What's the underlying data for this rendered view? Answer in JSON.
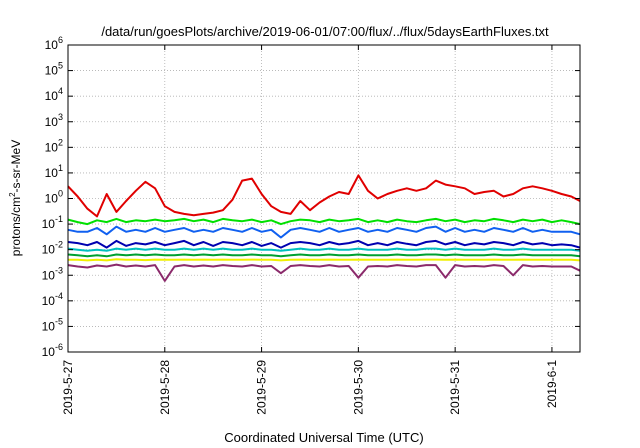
{
  "chart_data": {
    "type": "line",
    "title": "/data/run/goesPlots/archive/2019-06-01/07:00/flux/../flux/5daysEarthFluxes.txt",
    "xlabel": "Coordinated Universal Time (UTC)",
    "ylabel": {
      "base": "protons/cm",
      "sup": "2",
      "rest": "-s-sr-MeV"
    },
    "yscale": "log",
    "ylim_exp": [
      -6,
      6
    ],
    "ytick_base": "10",
    "yticks_exp": [
      "-6",
      "-5",
      "-4",
      "-3",
      "-2",
      "-1",
      "0",
      "1",
      "2",
      "3",
      "4",
      "5",
      "6"
    ],
    "xlim": [
      "2019-05-27",
      "2019-06-01 07:00"
    ],
    "xticks": [
      "2019-5-27",
      "2019-5-28",
      "2019-5-29",
      "2019-5-30",
      "2019-5-31",
      "2019-6-1"
    ],
    "grid": true,
    "x_days": [
      0,
      0.1,
      0.2,
      0.3,
      0.4,
      0.5,
      0.6,
      0.7,
      0.8,
      0.9,
      1.0,
      1.1,
      1.2,
      1.3,
      1.4,
      1.5,
      1.6,
      1.7,
      1.8,
      1.9,
      2.0,
      2.1,
      2.2,
      2.3,
      2.4,
      2.5,
      2.6,
      2.7,
      2.8,
      2.9,
      3.0,
      3.1,
      3.2,
      3.3,
      3.4,
      3.5,
      3.6,
      3.7,
      3.8,
      3.9,
      4.0,
      4.1,
      4.2,
      4.3,
      4.4,
      4.5,
      4.6,
      4.7,
      4.8,
      4.9,
      5.0,
      5.1,
      5.2,
      5.29
    ],
    "series": [
      {
        "color": "#e00000",
        "values": [
          3.0,
          1.2,
          0.4,
          0.2,
          1.5,
          0.3,
          0.8,
          2.0,
          4.5,
          2.5,
          0.5,
          0.3,
          0.25,
          0.22,
          0.25,
          0.28,
          0.35,
          0.9,
          5.0,
          6.0,
          1.5,
          0.5,
          0.3,
          0.25,
          0.8,
          0.35,
          0.7,
          1.2,
          1.8,
          1.5,
          8.0,
          2.0,
          1.0,
          1.5,
          2.0,
          2.5,
          2.0,
          2.5,
          5.0,
          3.5,
          3.0,
          2.5,
          1.5,
          1.8,
          2.0,
          1.2,
          1.5,
          2.5,
          3.0,
          2.5,
          2.0,
          1.5,
          1.2,
          0.8
        ]
      },
      {
        "color": "#00e000",
        "values": [
          0.15,
          0.12,
          0.1,
          0.14,
          0.12,
          0.16,
          0.12,
          0.14,
          0.13,
          0.15,
          0.13,
          0.14,
          0.16,
          0.13,
          0.15,
          0.12,
          0.16,
          0.14,
          0.13,
          0.15,
          0.12,
          0.14,
          0.1,
          0.13,
          0.15,
          0.14,
          0.12,
          0.15,
          0.13,
          0.14,
          0.16,
          0.12,
          0.14,
          0.12,
          0.15,
          0.13,
          0.12,
          0.14,
          0.16,
          0.13,
          0.15,
          0.12,
          0.14,
          0.13,
          0.16,
          0.14,
          0.12,
          0.15,
          0.13,
          0.15,
          0.12,
          0.14,
          0.12,
          0.1
        ]
      },
      {
        "color": "#1060f0",
        "values": [
          0.06,
          0.05,
          0.05,
          0.07,
          0.04,
          0.08,
          0.05,
          0.06,
          0.05,
          0.07,
          0.05,
          0.06,
          0.07,
          0.05,
          0.06,
          0.05,
          0.07,
          0.06,
          0.05,
          0.07,
          0.05,
          0.06,
          0.03,
          0.06,
          0.07,
          0.06,
          0.05,
          0.07,
          0.05,
          0.06,
          0.07,
          0.05,
          0.06,
          0.05,
          0.07,
          0.06,
          0.05,
          0.07,
          0.08,
          0.05,
          0.07,
          0.05,
          0.06,
          0.05,
          0.07,
          0.06,
          0.05,
          0.07,
          0.05,
          0.06,
          0.05,
          0.05,
          0.05,
          0.04
        ]
      },
      {
        "color": "#0000b0",
        "values": [
          0.02,
          0.018,
          0.015,
          0.02,
          0.012,
          0.022,
          0.014,
          0.018,
          0.016,
          0.02,
          0.015,
          0.018,
          0.022,
          0.015,
          0.02,
          0.014,
          0.02,
          0.018,
          0.015,
          0.02,
          0.014,
          0.018,
          0.012,
          0.018,
          0.02,
          0.018,
          0.015,
          0.02,
          0.016,
          0.018,
          0.022,
          0.015,
          0.018,
          0.015,
          0.02,
          0.017,
          0.015,
          0.02,
          0.022,
          0.016,
          0.02,
          0.015,
          0.018,
          0.016,
          0.02,
          0.018,
          0.015,
          0.02,
          0.016,
          0.018,
          0.015,
          0.016,
          0.015,
          0.012
        ]
      },
      {
        "color": "#00c0c0",
        "values": [
          0.011,
          0.01,
          0.009,
          0.01,
          0.009,
          0.011,
          0.01,
          0.011,
          0.01,
          0.011,
          0.01,
          0.01,
          0.011,
          0.01,
          0.011,
          0.01,
          0.011,
          0.01,
          0.01,
          0.011,
          0.01,
          0.01,
          0.009,
          0.01,
          0.011,
          0.01,
          0.01,
          0.011,
          0.01,
          0.01,
          0.011,
          0.01,
          0.01,
          0.01,
          0.011,
          0.01,
          0.01,
          0.011,
          0.011,
          0.01,
          0.011,
          0.01,
          0.01,
          0.01,
          0.011,
          0.01,
          0.01,
          0.011,
          0.01,
          0.01,
          0.01,
          0.01,
          0.01,
          0.009
        ]
      },
      {
        "color": "#00a030",
        "values": [
          0.0065,
          0.006,
          0.0055,
          0.006,
          0.0055,
          0.0065,
          0.006,
          0.0065,
          0.006,
          0.0065,
          0.006,
          0.006,
          0.0065,
          0.006,
          0.0065,
          0.006,
          0.0065,
          0.006,
          0.006,
          0.0065,
          0.006,
          0.006,
          0.0055,
          0.006,
          0.0065,
          0.006,
          0.006,
          0.0065,
          0.006,
          0.006,
          0.0065,
          0.006,
          0.006,
          0.006,
          0.0065,
          0.006,
          0.006,
          0.0065,
          0.0065,
          0.006,
          0.0065,
          0.006,
          0.006,
          0.006,
          0.0065,
          0.006,
          0.006,
          0.0065,
          0.006,
          0.006,
          0.006,
          0.006,
          0.006,
          0.0055
        ]
      },
      {
        "color": "#f0f000",
        "values": [
          0.004,
          0.004,
          0.0038,
          0.004,
          0.0038,
          0.0042,
          0.004,
          0.004,
          0.0039,
          0.0041,
          0.004,
          0.004,
          0.0041,
          0.004,
          0.0041,
          0.004,
          0.0041,
          0.004,
          0.004,
          0.0041,
          0.004,
          0.004,
          0.0038,
          0.004,
          0.0041,
          0.004,
          0.004,
          0.0041,
          0.004,
          0.004,
          0.0041,
          0.004,
          0.004,
          0.004,
          0.0041,
          0.004,
          0.004,
          0.0041,
          0.0041,
          0.004,
          0.0041,
          0.004,
          0.004,
          0.004,
          0.0041,
          0.004,
          0.004,
          0.0041,
          0.004,
          0.004,
          0.004,
          0.004,
          0.004,
          0.0038
        ]
      },
      {
        "color": "#8b2a6b",
        "values": [
          0.0025,
          0.0022,
          0.002,
          0.0024,
          0.0022,
          0.0026,
          0.0022,
          0.0024,
          0.0022,
          0.0025,
          0.0006,
          0.0022,
          0.0025,
          0.0022,
          0.0024,
          0.0022,
          0.0025,
          0.0023,
          0.0022,
          0.0025,
          0.0022,
          0.0023,
          0.0012,
          0.0023,
          0.0025,
          0.0023,
          0.0022,
          0.0025,
          0.0022,
          0.0023,
          0.0008,
          0.0022,
          0.0023,
          0.0022,
          0.0025,
          0.0023,
          0.0022,
          0.0025,
          0.0025,
          0.0008,
          0.0025,
          0.0022,
          0.0023,
          0.0022,
          0.0025,
          0.0023,
          0.001,
          0.0025,
          0.0022,
          0.0023,
          0.0022,
          0.0022,
          0.0022,
          0.0015
        ]
      }
    ]
  }
}
